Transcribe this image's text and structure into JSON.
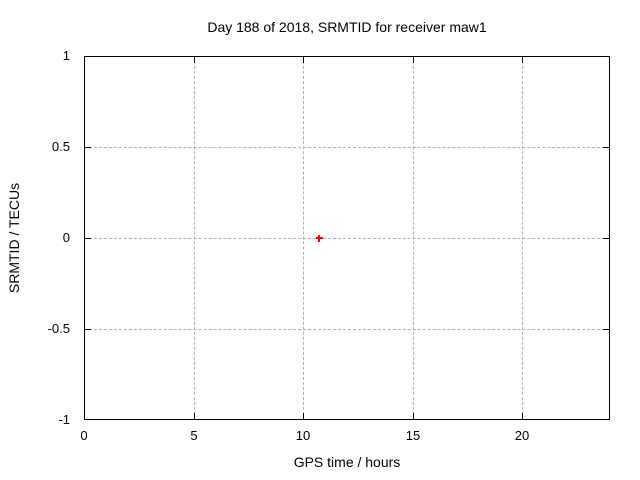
{
  "chart_data": {
    "type": "scatter",
    "title": "Day 188 of 2018, SRMTID for receiver maw1",
    "xlabel": "GPS time / hours",
    "ylabel": "SRMTID / TECUs",
    "xlim": [
      0,
      24
    ],
    "ylim": [
      -1,
      1
    ],
    "x_ticks": [
      0,
      5,
      10,
      15,
      20
    ],
    "x_tick_labels": [
      "0",
      "5",
      "10",
      "15",
      "20"
    ],
    "y_ticks": [
      1,
      0.5,
      0,
      -0.5,
      -1
    ],
    "y_tick_labels": [
      "1",
      "0.5",
      "0",
      "-0.5",
      "-1"
    ],
    "grid": true,
    "legend": "none",
    "grid_color": "#b0b0b0",
    "border_color": "#000000",
    "background_color": "#ffffff",
    "series": [
      {
        "name": "SRMTID",
        "marker": "plus",
        "color": "#ff0000",
        "points": [
          {
            "x": 10.7,
            "y": 0.0
          }
        ]
      }
    ]
  }
}
